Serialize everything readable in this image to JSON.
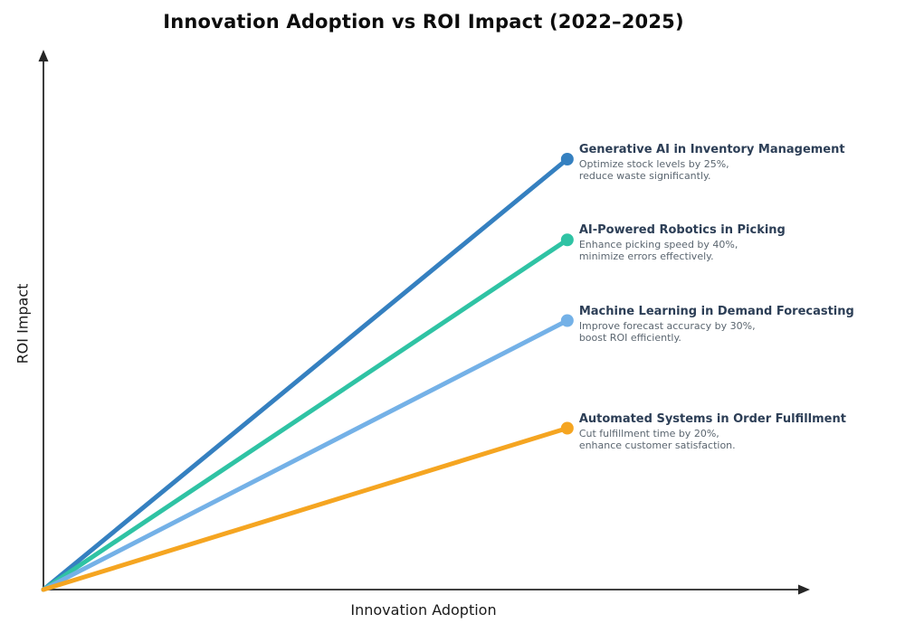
{
  "title": "Innovation Adoption vs ROI Impact (2022–2025)",
  "chart_data": {
    "type": "line",
    "title": "Innovation Adoption vs ROI Impact (2022–2025)",
    "xlabel": "Innovation Adoption",
    "ylabel": "ROI Impact",
    "xlim": [
      0,
      1
    ],
    "ylim": [
      0,
      1
    ],
    "grid": false,
    "tick_labels": "none",
    "axis_style": "arrows",
    "axis_color": "#262626",
    "legend_position": "inline-right-annotations",
    "series": [
      {
        "name": "Generative AI in Inventory Management",
        "desc": [
          "Optimize stock levels by 25%,",
          "reduce waste significantly."
        ],
        "color": "#3580c0",
        "points": [
          [
            0,
            0
          ],
          [
            0.685,
            0.8
          ]
        ]
      },
      {
        "name": "AI-Powered Robotics in Picking",
        "desc": [
          "Enhance picking speed by 40%,",
          "minimize errors effectively."
        ],
        "color": "#2fc3a4",
        "points": [
          [
            0,
            0
          ],
          [
            0.685,
            0.65
          ]
        ]
      },
      {
        "name": "Machine Learning in Demand Forecasting",
        "desc": [
          "Improve forecast accuracy by 30%,",
          "boost ROI efficiently."
        ],
        "color": "#74b1e7",
        "points": [
          [
            0,
            0
          ],
          [
            0.685,
            0.5
          ]
        ]
      },
      {
        "name": "Automated Systems in Order Fulfillment",
        "desc": [
          "Cut fulfillment time by 20%,",
          "enhance customer satisfaction."
        ],
        "color": "#f5a521",
        "points": [
          [
            0,
            0
          ],
          [
            0.685,
            0.3
          ]
        ]
      }
    ]
  }
}
